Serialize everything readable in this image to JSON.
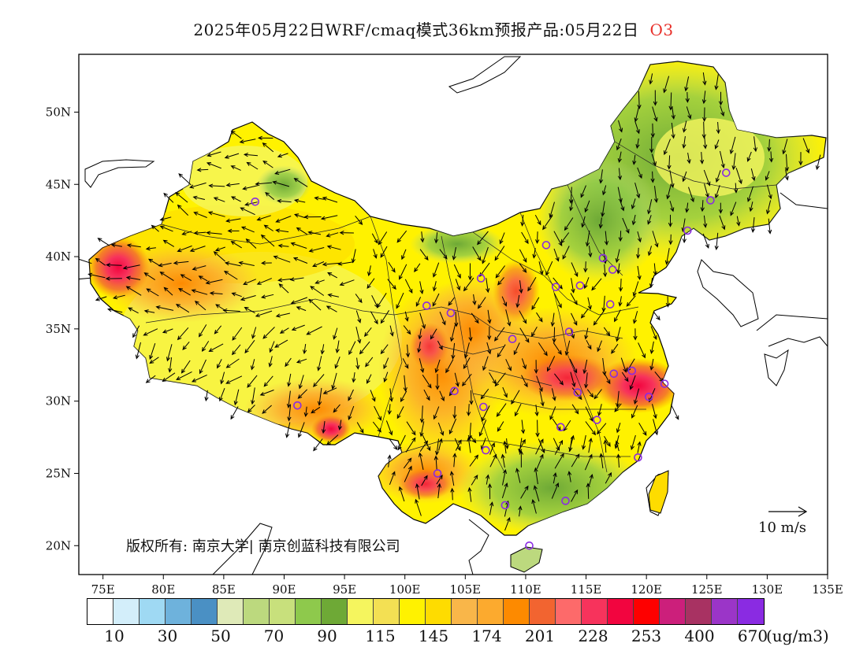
{
  "title": {
    "main": "2025年05月22日WRF/cmaq模式36km预报产品:05月22日",
    "variable": "O3"
  },
  "axes": {
    "x_ticks": [
      "75E",
      "80E",
      "85E",
      "90E",
      "95E",
      "100E",
      "105E",
      "110E",
      "115E",
      "120E",
      "125E",
      "130E",
      "135E"
    ],
    "y_ticks": [
      "50N",
      "45N",
      "40N",
      "35N",
      "30N",
      "25N",
      "20N"
    ]
  },
  "wind_reference": {
    "label": "10 m/s"
  },
  "copyright": "版权所有: 南京大学| 南京创蓝科技有限公司",
  "colorbar": {
    "colors": [
      "#ffffff",
      "#d3eefa",
      "#9fd9f3",
      "#6eb2dc",
      "#4a90c4",
      "#dfeab8",
      "#bcd97e",
      "#c8e07c",
      "#8ec94c",
      "#6ea936",
      "#f5f55e",
      "#f3e053",
      "#fff200",
      "#fedc00",
      "#f9b649",
      "#fcaa2e",
      "#fd8a00",
      "#f26430",
      "#fd6a6a",
      "#f7335c",
      "#f2053f",
      "#fe0000",
      "#cc1f7b",
      "#a83262",
      "#9b35c8",
      "#8a2be2"
    ],
    "labels": [
      "10",
      "30",
      "50",
      "70",
      "90",
      "115",
      "145",
      "174",
      "201",
      "228",
      "253",
      "400",
      "670"
    ],
    "unit": "(ug/m3)"
  },
  "map_data": {
    "lon_range": [
      73,
      135
    ],
    "lat_range": [
      18,
      54
    ],
    "cities": [
      {
        "lon": 87.6,
        "lat": 43.8
      },
      {
        "lon": 91.1,
        "lat": 29.7
      },
      {
        "lon": 101.8,
        "lat": 36.6
      },
      {
        "lon": 103.8,
        "lat": 36.1
      },
      {
        "lon": 106.3,
        "lat": 38.5
      },
      {
        "lon": 104.1,
        "lat": 30.7
      },
      {
        "lon": 106.5,
        "lat": 29.6
      },
      {
        "lon": 106.7,
        "lat": 26.6
      },
      {
        "lon": 102.7,
        "lat": 25.0
      },
      {
        "lon": 108.3,
        "lat": 22.8
      },
      {
        "lon": 110.3,
        "lat": 20.0
      },
      {
        "lon": 113.3,
        "lat": 23.1
      },
      {
        "lon": 108.9,
        "lat": 34.3
      },
      {
        "lon": 111.7,
        "lat": 40.8
      },
      {
        "lon": 112.5,
        "lat": 37.9
      },
      {
        "lon": 114.5,
        "lat": 38.0
      },
      {
        "lon": 116.4,
        "lat": 39.9
      },
      {
        "lon": 117.2,
        "lat": 39.1
      },
      {
        "lon": 117.0,
        "lat": 36.7
      },
      {
        "lon": 113.6,
        "lat": 34.8
      },
      {
        "lon": 114.3,
        "lat": 30.6
      },
      {
        "lon": 112.9,
        "lat": 28.2
      },
      {
        "lon": 115.9,
        "lat": 28.7
      },
      {
        "lon": 117.3,
        "lat": 31.9
      },
      {
        "lon": 118.8,
        "lat": 32.1
      },
      {
        "lon": 120.2,
        "lat": 30.3
      },
      {
        "lon": 121.5,
        "lat": 31.2
      },
      {
        "lon": 119.3,
        "lat": 26.1
      },
      {
        "lon": 123.4,
        "lat": 41.8
      },
      {
        "lon": 125.3,
        "lat": 43.9
      },
      {
        "lon": 126.6,
        "lat": 45.8
      }
    ]
  }
}
